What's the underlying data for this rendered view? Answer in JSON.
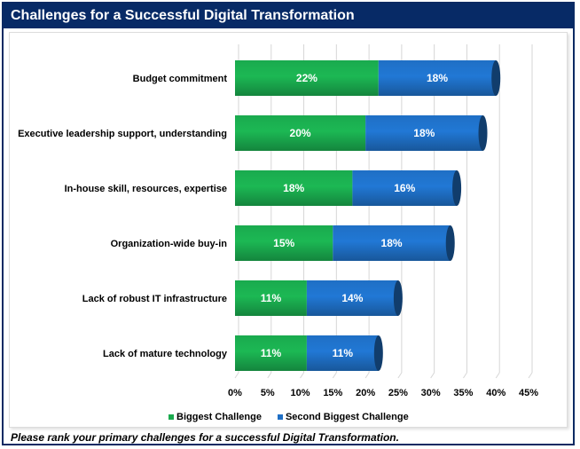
{
  "chart_data": {
    "type": "bar",
    "orientation": "horizontal",
    "stacked": true,
    "title": "Challenges for a Successful Digital Transformation",
    "categories": [
      "Budget commitment",
      "Executive leadership support, understanding",
      "In-house skill, resources, expertise",
      "Organization-wide buy-in",
      "Lack of robust IT infrastructure",
      "Lack of mature technology"
    ],
    "series": [
      {
        "name": "Biggest Challenge",
        "color": "#1aaa4e",
        "values": [
          22,
          20,
          18,
          15,
          11,
          11
        ]
      },
      {
        "name": "Second Biggest Challenge",
        "color": "#1f6fc5",
        "values": [
          18,
          18,
          16,
          18,
          14,
          11
        ]
      }
    ],
    "xlim": [
      0,
      45
    ],
    "xticks": [
      "0%",
      "5%",
      "10%",
      "15%",
      "20%",
      "25%",
      "30%",
      "35%",
      "40%",
      "45%"
    ],
    "value_suffix": "%",
    "grid": true,
    "legend_position": "bottom"
  },
  "footnote": "Please rank your primary challenges for a successful Digital Transformation."
}
